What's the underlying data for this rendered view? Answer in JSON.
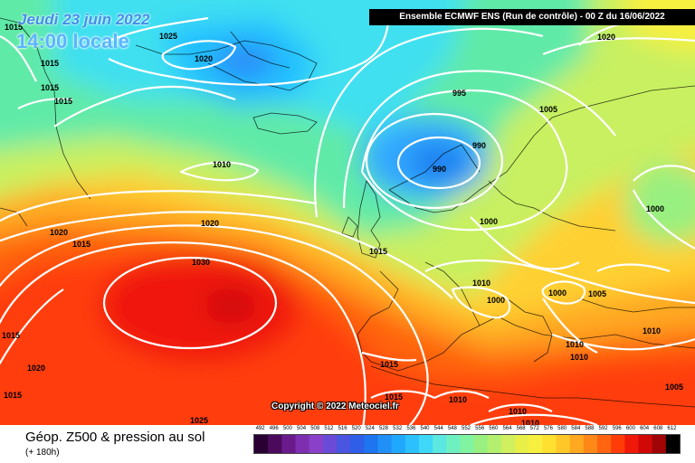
{
  "header": {
    "date": "Jeudi 23 juin 2022",
    "time": "14:00 locale",
    "run_info": "Ensemble ECMWF ENS  (Run de contrôle)  - 00 Z du 16/06/2022"
  },
  "copyright": "Copyright © 2022 Meteociel.fr",
  "footer": {
    "title": "Géop. Z500 & pression au sol",
    "subtitle": "(+ 180h)"
  },
  "legend": {
    "values": [
      "492",
      "496",
      "500",
      "504",
      "508",
      "512",
      "516",
      "520",
      "524",
      "528",
      "532",
      "536",
      "540",
      "544",
      "548",
      "552",
      "556",
      "560",
      "564",
      "568",
      "572",
      "576",
      "580",
      "584",
      "588",
      "592",
      "596",
      "600",
      "604",
      "608",
      "612"
    ],
    "colors": [
      "#2a0033",
      "#4b0a5c",
      "#6a1a8a",
      "#7e2fb0",
      "#8a40c8",
      "#6a4bd8",
      "#4a56e0",
      "#2f5ee8",
      "#1f74f0",
      "#2090f8",
      "#20a8ff",
      "#2cc0ff",
      "#40d8f8",
      "#5ae8e0",
      "#6ef0c0",
      "#80f4a0",
      "#98f080",
      "#b4f070",
      "#d0f060",
      "#e8f048",
      "#f8f040",
      "#ffe030",
      "#ffc828",
      "#ffa820",
      "#ff8818",
      "#ff6410",
      "#ff3c08",
      "#f01808",
      "#d00808",
      "#a00404",
      "#000000"
    ]
  },
  "isobars": [
    {
      "label": "1025",
      "tag": "greenland"
    },
    {
      "label": "1020",
      "tag": "greenland-east"
    },
    {
      "label": "1015",
      "tag": "gl-1"
    },
    {
      "label": "1015",
      "tag": "gl-2"
    },
    {
      "label": "1015",
      "tag": "gl-3"
    },
    {
      "label": "1015",
      "tag": "gl-4"
    },
    {
      "label": "1010",
      "tag": "atlantic-mid"
    },
    {
      "label": "1020",
      "tag": "atlantic-west"
    },
    {
      "label": "1015",
      "tag": "atlantic-west-2"
    },
    {
      "label": "1020",
      "tag": "azores-outer"
    },
    {
      "label": "1030",
      "tag": "azores-high"
    },
    {
      "label": "1015",
      "tag": "atlantic-sw"
    },
    {
      "label": "1020",
      "tag": "atlantic-sw-2"
    },
    {
      "label": "1015",
      "tag": "atlantic-sw-3"
    },
    {
      "label": "1025",
      "tag": "atlantic-south"
    },
    {
      "label": "995",
      "tag": "scandi-low"
    },
    {
      "label": "990",
      "tag": "scandi-low-2"
    },
    {
      "label": "990",
      "tag": "scandi-low-core"
    },
    {
      "label": "1005",
      "tag": "baltic"
    },
    {
      "label": "1020",
      "tag": "arctic-ne"
    },
    {
      "label": "1000",
      "tag": "north-sea"
    },
    {
      "label": "1015",
      "tag": "france-west"
    },
    {
      "label": "1010",
      "tag": "alps"
    },
    {
      "label": "1000",
      "tag": "alps-2"
    },
    {
      "label": "1000",
      "tag": "balkans"
    },
    {
      "label": "1005",
      "tag": "black-sea"
    },
    {
      "label": "1000",
      "tag": "russia"
    },
    {
      "label": "1010",
      "tag": "turkey"
    },
    {
      "label": "1010",
      "tag": "greece"
    },
    {
      "label": "1010",
      "tag": "aegean"
    },
    {
      "label": "1015",
      "tag": "med-west"
    },
    {
      "label": "1015",
      "tag": "algeria"
    },
    {
      "label": "1010",
      "tag": "tunisia"
    },
    {
      "label": "1010",
      "tag": "libya"
    },
    {
      "label": "1010",
      "tag": "libya-2"
    },
    {
      "label": "1005",
      "tag": "east-med"
    }
  ]
}
